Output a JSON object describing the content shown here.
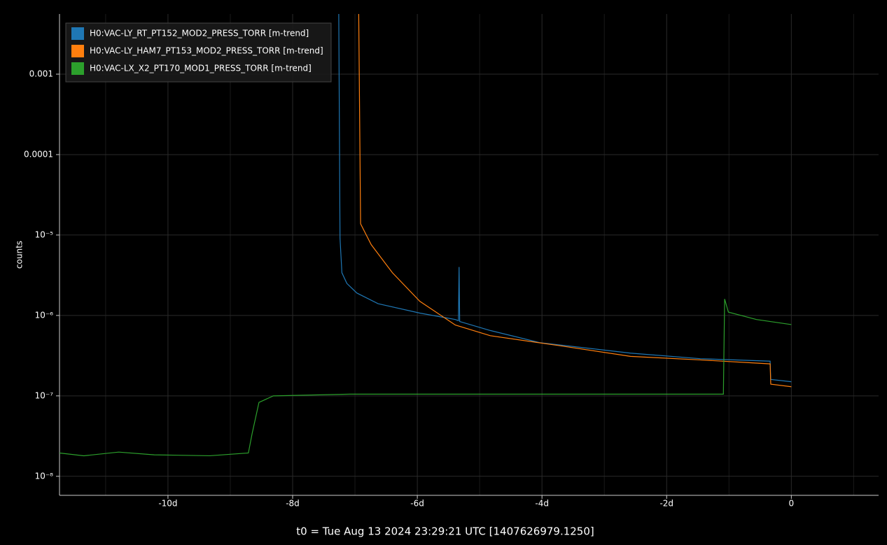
{
  "chart_data": {
    "type": "line",
    "ylabel": "counts",
    "xlabel": "t0 = Tue Aug 13 2024 23:29:21 UTC [1407626979.1250]",
    "xlim": [
      -11.74,
      1.4
    ],
    "xticks": [
      {
        "value": -10,
        "label": "-10d"
      },
      {
        "value": -8,
        "label": "-8d"
      },
      {
        "value": -6,
        "label": "-6d"
      },
      {
        "value": -4,
        "label": "-4d"
      },
      {
        "value": -2,
        "label": "-2d"
      },
      0
    ],
    "xminorticks": [
      -11,
      -9,
      -7,
      -5,
      -3,
      -1,
      1
    ],
    "ylim": [
      5.8e-09,
      0.0056
    ],
    "yticks": [
      {
        "value": 1e-08,
        "label": "10⁻⁸"
      },
      {
        "value": 1e-07,
        "label": "10⁻⁷"
      },
      {
        "value": 1e-06,
        "label": "10⁻⁶"
      },
      {
        "value": 1e-05,
        "label": "10⁻⁵"
      },
      0.0001,
      0.001
    ],
    "log_y": true,
    "grid": true,
    "legend": "upper left",
    "series": [
      {
        "name": "H0:VAC-LY_RT_PT152_MOD2_PRESS_TORR [m-trend]",
        "color": "#1f77b4",
        "x": [
          -7.26,
          -7.24,
          -7.21,
          -7.13,
          -6.97,
          -6.63,
          -5.96,
          -5.39,
          -5.34,
          -5.33,
          -5.32,
          -4.83,
          -4.04,
          -2.58,
          -1.46,
          -0.34,
          -0.33,
          0
        ],
        "values": [
          0.0056,
          9.2e-06,
          3.4e-06,
          2.5e-06,
          1.9e-06,
          1.4e-06,
          1.07e-06,
          8.9e-07,
          8.6e-07,
          4e-06,
          8.4e-07,
          6.5e-07,
          4.6e-07,
          3.4e-07,
          2.9e-07,
          2.7e-07,
          1.6e-07,
          1.5e-07
        ]
      },
      {
        "name": "H0:VAC-LY_HAM7_PT153_MOD2_PRESS_TORR [m-trend]",
        "color": "#ff7f0e",
        "x": [
          -6.94,
          -6.91,
          -6.74,
          -6.4,
          -5.96,
          -5.39,
          -4.83,
          -3.71,
          -2.58,
          -1.46,
          -0.34,
          -0.33,
          0
        ],
        "values": [
          0.0056,
          1.38e-05,
          7.6e-06,
          3.4e-06,
          1.5e-06,
          7.6e-07,
          5.6e-07,
          4.2e-07,
          3.1e-07,
          2.8e-07,
          2.5e-07,
          1.4e-07,
          1.3e-07
        ]
      },
      {
        "name": "H0:VAC-LX_X2_PT170_MOD1_PRESS_TORR [m-trend]",
        "color": "#2ca02c",
        "x": [
          -11.74,
          -11.35,
          -10.79,
          -10.22,
          -9.33,
          -8.71,
          -8.65,
          -8.54,
          -8.31,
          -7.08,
          -1.09,
          -1.07,
          -1.01,
          -0.56,
          0
        ],
        "values": [
          1.95e-08,
          1.8e-08,
          2e-08,
          1.85e-08,
          1.8e-08,
          1.95e-08,
          3.4e-08,
          8.3e-08,
          1e-07,
          1.05e-07,
          1.05e-07,
          1.6e-06,
          1.1e-06,
          8.9e-07,
          7.7e-07
        ]
      }
    ]
  }
}
